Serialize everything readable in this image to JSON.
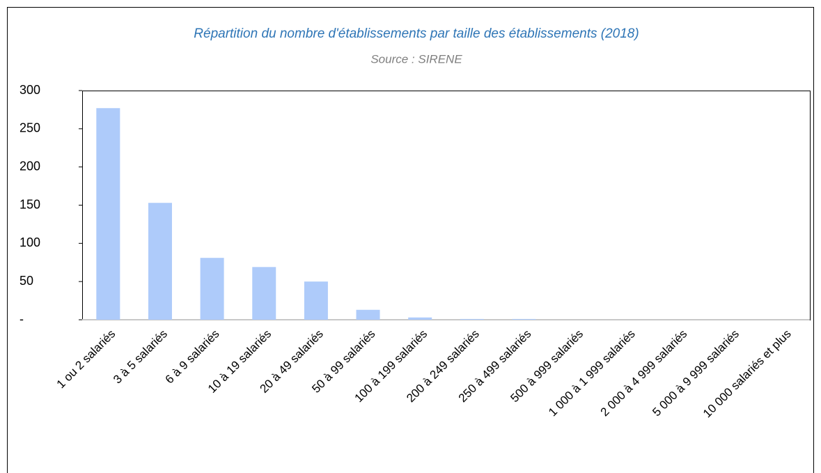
{
  "chart_data": {
    "type": "bar",
    "title": "Répartition du nombre d'établissements par taille des établissements (2018)",
    "subtitle": "Source : SIRENE",
    "categories": [
      "1 ou 2 salariés",
      "3 à 5 salariés",
      "6 à 9 salariés",
      "10 à 19 salariés",
      "20 à 49 salariés",
      "50 à 99 salariés",
      "100 à 199 salariés",
      "200 à 249 salariés",
      "250 à 499 salariés",
      "500 à 999 salariés",
      "1 000 à 1 999 salariés",
      "2 000 à 4 999 salariés",
      "5 000 à 9 999 salariés",
      "10 000 salariés et plus"
    ],
    "values": [
      277,
      153,
      81,
      69,
      50,
      13,
      3,
      1,
      1,
      0,
      0,
      0,
      0,
      0
    ],
    "color": "#aecbfa",
    "ylim": [
      0,
      300
    ],
    "yticks": [
      {
        "value": 0,
        "label": "-"
      },
      50,
      100,
      150,
      200,
      250,
      300
    ],
    "grid": false
  }
}
